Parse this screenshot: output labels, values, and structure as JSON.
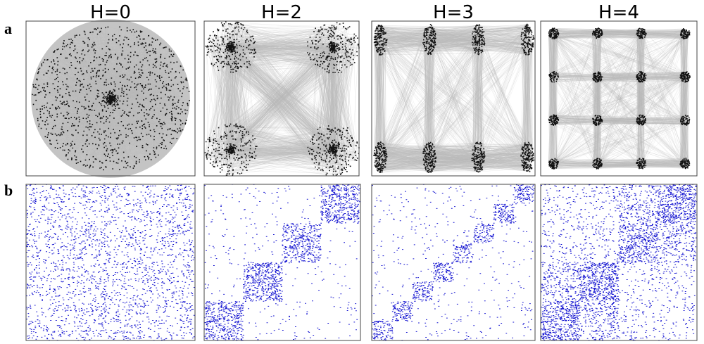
{
  "panel_labels": {
    "a": "a",
    "b": "b"
  },
  "columns": [
    {
      "title": "H=0"
    },
    {
      "title": "H=2"
    },
    {
      "title": "H=3"
    },
    {
      "title": "H=4"
    }
  ]
}
